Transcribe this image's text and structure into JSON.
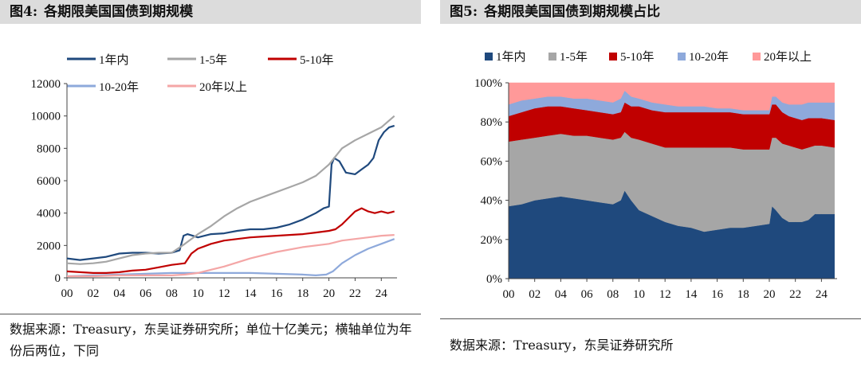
{
  "left": {
    "figure_label": "图4:",
    "title": "各期限美国国债到期规模",
    "source": "数据来源：Treasury，东吴证券研究所；单位十亿美元；横轴单位为年份后两位，下同"
  },
  "right": {
    "figure_label": "图5:",
    "title": "各期限美国国债到期规模占比",
    "source": "数据来源：Treasury，东吴证券研究所"
  },
  "chart_data": [
    {
      "type": "line",
      "title": "各期限美国国债到期规模",
      "xlabel": "",
      "ylabel": "",
      "x_ticks": [
        "00",
        "02",
        "04",
        "06",
        "08",
        "10",
        "12",
        "14",
        "16",
        "18",
        "20",
        "22",
        "24"
      ],
      "y_ticks": [
        0,
        2000,
        4000,
        6000,
        8000,
        10000,
        12000
      ],
      "xlim": [
        2000,
        2025.2
      ],
      "ylim": [
        0,
        12000
      ],
      "legend_position": "top",
      "series": [
        {
          "name": "1年内",
          "color": "#1f497d",
          "x": [
            2000,
            2000.5,
            2001,
            2001.5,
            2002,
            2003,
            2004,
            2005,
            2006,
            2007,
            2008,
            2008.6,
            2008.9,
            2009.2,
            2009.6,
            2010,
            2011,
            2012,
            2013,
            2014,
            2015,
            2016,
            2017,
            2018,
            2019,
            2019.6,
            2020.0,
            2020.2,
            2020.4,
            2020.8,
            2021.3,
            2022,
            2022.5,
            2023,
            2023.4,
            2023.8,
            2024.2,
            2024.6,
            2025
          ],
          "values": [
            1200,
            1150,
            1100,
            1150,
            1200,
            1300,
            1500,
            1550,
            1550,
            1500,
            1550,
            1700,
            2600,
            2700,
            2600,
            2500,
            2700,
            2750,
            2900,
            3000,
            3000,
            3100,
            3300,
            3600,
            4000,
            4300,
            4400,
            7000,
            7400,
            7200,
            6500,
            6400,
            6700,
            7000,
            7400,
            8500,
            9000,
            9300,
            9400
          ]
        },
        {
          "name": "1-5年",
          "color": "#a6a6a6",
          "x": [
            2000,
            2001,
            2002,
            2003,
            2004,
            2005,
            2006,
            2007,
            2008,
            2009,
            2010,
            2011,
            2012,
            2013,
            2014,
            2015,
            2016,
            2017,
            2018,
            2019,
            2020,
            2021,
            2022,
            2023,
            2024,
            2025
          ],
          "values": [
            900,
            850,
            900,
            1000,
            1200,
            1400,
            1500,
            1550,
            1550,
            2100,
            2700,
            3200,
            3800,
            4300,
            4700,
            5000,
            5300,
            5600,
            5900,
            6300,
            7000,
            8000,
            8500,
            8900,
            9300,
            10000
          ]
        },
        {
          "name": "5-10年",
          "color": "#c00000",
          "x": [
            2000,
            2001,
            2002,
            2003,
            2004,
            2005,
            2006,
            2007,
            2008,
            2009,
            2009.5,
            2010,
            2011,
            2012,
            2013,
            2014,
            2015,
            2016,
            2017,
            2018,
            2019,
            2020,
            2020.5,
            2021,
            2022,
            2022.5,
            2023,
            2023.5,
            2024,
            2024.5,
            2025
          ],
          "values": [
            400,
            350,
            300,
            300,
            350,
            450,
            500,
            650,
            800,
            900,
            1500,
            1800,
            2100,
            2300,
            2400,
            2500,
            2550,
            2600,
            2650,
            2700,
            2800,
            2900,
            3000,
            3300,
            4100,
            4300,
            4100,
            4000,
            4100,
            4000,
            4100
          ]
        },
        {
          "name": "10-20年",
          "color": "#8ea9db",
          "x": [
            2000,
            2002,
            2004,
            2006,
            2008,
            2010,
            2012,
            2014,
            2016,
            2018,
            2019,
            2019.8,
            2020.3,
            2021,
            2022,
            2023,
            2024,
            2025
          ],
          "values": [
            100,
            150,
            200,
            250,
            300,
            300,
            300,
            300,
            250,
            200,
            150,
            200,
            400,
            900,
            1400,
            1800,
            2100,
            2400
          ]
        },
        {
          "name": "20年以上",
          "color": "#f4a6a6",
          "x": [
            2000,
            2002,
            2004,
            2006,
            2008,
            2009,
            2010,
            2011,
            2012,
            2014,
            2016,
            2018,
            2020,
            2021,
            2022,
            2023,
            2024,
            2025
          ],
          "values": [
            100,
            100,
            150,
            150,
            150,
            200,
            300,
            500,
            700,
            1200,
            1600,
            1900,
            2100,
            2300,
            2400,
            2500,
            2600,
            2650
          ]
        }
      ]
    },
    {
      "type": "area",
      "stacked": true,
      "percent": true,
      "title": "各期限美国国债到期规模占比",
      "xlabel": "",
      "ylabel": "",
      "x_ticks": [
        "00",
        "02",
        "04",
        "06",
        "08",
        "10",
        "12",
        "14",
        "16",
        "18",
        "20",
        "22",
        "24"
      ],
      "y_ticks": [
        "0%",
        "20%",
        "40%",
        "60%",
        "80%",
        "100%"
      ],
      "xlim": [
        2000,
        2025.2
      ],
      "ylim": [
        0,
        100
      ],
      "legend_position": "top",
      "x": [
        2000,
        2001,
        2002,
        2003,
        2004,
        2005,
        2006,
        2007,
        2008,
        2008.6,
        2008.9,
        2009.4,
        2010,
        2011,
        2012,
        2013,
        2014,
        2015,
        2016,
        2017,
        2018,
        2019,
        2020,
        2020.2,
        2020.5,
        2021,
        2021.5,
        2022,
        2022.5,
        2023,
        2023.5,
        2024,
        2025
      ],
      "series": [
        {
          "name": "1年内",
          "color": "#1f497d",
          "values": [
            37,
            38,
            40,
            41,
            42,
            41,
            40,
            39,
            38,
            40,
            45,
            40,
            35,
            32,
            29,
            27,
            26,
            24,
            25,
            26,
            26,
            27,
            28,
            37,
            35,
            31,
            29,
            29,
            29,
            30,
            33,
            33,
            33
          ]
        },
        {
          "name": "1-5年",
          "color": "#a6a6a6",
          "values": [
            33,
            33,
            32,
            32,
            32,
            32,
            33,
            33,
            33,
            32,
            30,
            32,
            36,
            37,
            38,
            40,
            41,
            43,
            42,
            41,
            40,
            39,
            38,
            35,
            37,
            38,
            39,
            38,
            37,
            37,
            35,
            35,
            34
          ]
        },
        {
          "name": "5-10年",
          "color": "#c00000",
          "values": [
            13,
            14,
            15,
            15,
            14,
            14,
            13,
            13,
            13,
            13,
            15,
            16,
            17,
            17,
            18,
            18,
            18,
            18,
            18,
            18,
            18,
            18,
            18,
            17,
            17,
            16,
            15,
            15,
            15,
            15,
            14,
            14,
            14
          ]
        },
        {
          "name": "10-20年",
          "color": "#8ea9db",
          "values": [
            6,
            6,
            5,
            5,
            5,
            5,
            6,
            6,
            6,
            7,
            6,
            5,
            4,
            4,
            4,
            3,
            3,
            3,
            2,
            2,
            2,
            2,
            2,
            4,
            4,
            5,
            6,
            7,
            8,
            8,
            8,
            8,
            9
          ]
        },
        {
          "name": "20年以上",
          "color": "#ff9999",
          "values": [
            11,
            9,
            8,
            7,
            7,
            8,
            8,
            9,
            10,
            8,
            4,
            7,
            8,
            10,
            11,
            12,
            12,
            12,
            13,
            13,
            14,
            14,
            14,
            7,
            7,
            10,
            11,
            11,
            11,
            10,
            10,
            10,
            10
          ]
        }
      ]
    }
  ]
}
